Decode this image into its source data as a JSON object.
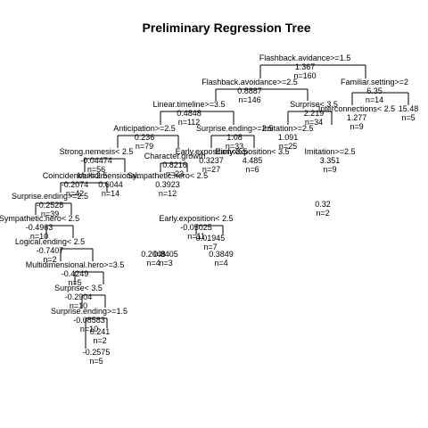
{
  "title": "Preliminary Regression Tree",
  "edge_color": "#000000",
  "nodes": {
    "root": [
      "Flashback.avidance>=1.5",
      "1.367",
      "n=160"
    ],
    "l1": [
      "Flashback.avoidance>=2.5",
      "0.8887",
      "n=146"
    ],
    "r1": [
      "Familiar.setting>=2",
      "6.35",
      "n=14"
    ],
    "ll": [
      "Linear.timeline>=3.5",
      "0.4848",
      "n=112"
    ],
    "lr": [
      "Surprise< 3.5",
      "2.219",
      "n=34"
    ],
    "rr_a": [
      "Interconnections< 2.5",
      "1.277",
      "n=9"
    ],
    "rr_b": [
      "15.48",
      "n=5"
    ],
    "antic": [
      "Anticipation>=2.5",
      "0.236",
      "n=79"
    ],
    "surpEnd": [
      "Surprise.ending>=2.5",
      "1.08",
      "n=33"
    ],
    "strong": [
      "Strong.nemesis< 2.5",
      "-0.04474",
      "n=56"
    ],
    "charG": [
      "Character.growth",
      "0.8216",
      "n=23"
    ],
    "earlyA": [
      "Early.exposition<3.5",
      "0.3237",
      "n=27"
    ],
    "mid1": [
      "Early.exposition< 3.5",
      "4.485",
      "n=6"
    ],
    "mid2": [
      "Imitation>=2.5",
      "1.091",
      "n=25"
    ],
    "mid3": [
      "Imitation>=2.5",
      "3.351",
      "n=9"
    ],
    "coinc": [
      "Coincidence>=2.5",
      "-0.2074",
      "n=42"
    ],
    "ming": [
      "Multidimensional...",
      "0.6044",
      "n=14"
    ],
    "sympath": [
      "Sympathetic.hero< 2.5",
      "0.3923",
      "n=12"
    ],
    "surpEnd2": [
      "Surprise.ending>=2.5",
      "-0.2528",
      "n=39"
    ],
    "sym2": [
      "Sympathetic.hero< 2.5",
      "-0.4963",
      "n=10"
    ],
    "logic": [
      "Logical.ending< 2.5",
      "-0.7407",
      "n=2"
    ],
    "multi": [
      "Multidimensional.hero>=3.5",
      "-0.4249",
      "n=5"
    ],
    "surp35": [
      "Surprise< 3.5",
      "-0.2904",
      "n=10"
    ],
    "surpEnd3": [
      "Surprise.ending>=1.5",
      "-0.08583",
      "n=10"
    ],
    "leafA": [
      "-0.2575",
      "n=5"
    ],
    "leafB": [
      "0.241",
      "n=2"
    ],
    "early25": [
      "Early.exposition< 2.5",
      "-0.05025",
      "n=11"
    ],
    "leafC": [
      "0.01945",
      "n=7"
    ],
    "leafD": [
      "0.2048",
      "n=4"
    ],
    "leafE": [
      "0.3849",
      "n=4"
    ],
    "leafF": [
      "0.8405",
      "n=3"
    ],
    "leafG": [
      "0.32",
      "n=2"
    ]
  }
}
